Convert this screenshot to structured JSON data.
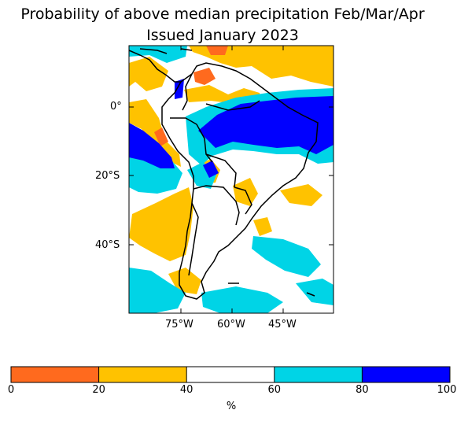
{
  "title_line1": "Probability of above median precipitation Feb/Mar/Apr",
  "title_line2": "Issued January 2023",
  "map": {
    "x_ticks": [
      "75°W",
      "60°W",
      "45°W"
    ],
    "y_ticks": [
      "0°",
      "20°S",
      "40°S"
    ],
    "colors": {
      "cat_0_20": "#ff6a1e",
      "cat_20_40": "#ffc200",
      "cat_40_60": "#ffffff",
      "cat_60_80": "#00d4e6",
      "cat_80_100": "#0000ff",
      "coastline": "#000000"
    }
  },
  "colorbar": {
    "ticks": [
      "0",
      "20",
      "40",
      "60",
      "80",
      "100"
    ],
    "units": "%",
    "bins": [
      {
        "range": "0-20",
        "color": "#ff6a1e"
      },
      {
        "range": "20-40",
        "color": "#ffc200"
      },
      {
        "range": "40-60",
        "color": "#ffffff"
      },
      {
        "range": "60-80",
        "color": "#00d4e6"
      },
      {
        "range": "80-100",
        "color": "#0000ff"
      }
    ]
  }
}
